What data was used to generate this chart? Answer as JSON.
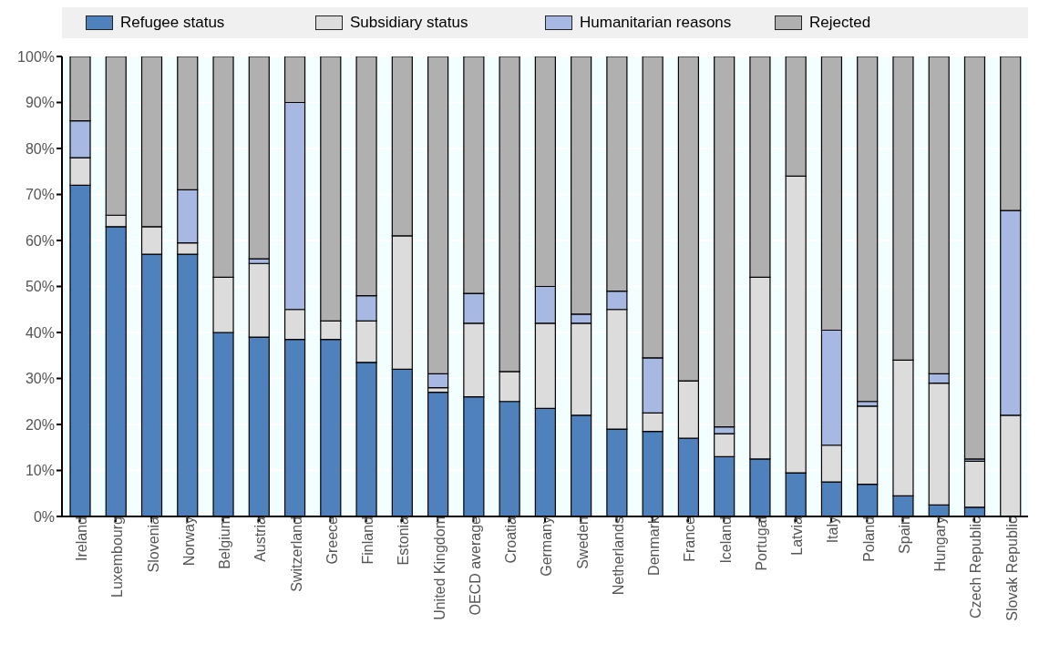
{
  "chart_data": {
    "type": "bar",
    "stacked": true,
    "legend": "top",
    "grid": true,
    "categories": [
      "Ireland",
      "Luxembourg",
      "Slovenia",
      "Norway",
      "Belgium",
      "Austria",
      "Switzerland",
      "Greece",
      "Finland",
      "Estonia",
      "United Kingdom",
      "OECD average",
      "Croatia",
      "Germany",
      "Sweden",
      "Netherlands",
      "Denmark",
      "France",
      "Iceland",
      "Portugal",
      "Latvia",
      "Italy",
      "Poland",
      "Spain",
      "Hungary",
      "Czech Republic",
      "Slovak Republic"
    ],
    "series": [
      {
        "name": "Refugee status",
        "color": "#4f81bd",
        "values": [
          72,
          63,
          57,
          57,
          40,
          39,
          38.5,
          38.5,
          33.5,
          32,
          27,
          26,
          25,
          23.5,
          22,
          19,
          18.5,
          17,
          13,
          12.5,
          9.5,
          7.5,
          7,
          4.5,
          2.5,
          2,
          0
        ]
      },
      {
        "name": "Subsidiary status",
        "color": "#dcdcdc",
        "values": [
          6,
          2.5,
          6,
          2.5,
          12,
          16,
          6.5,
          4,
          9,
          29,
          1,
          16,
          6.5,
          18.5,
          20,
          26,
          4,
          12.5,
          5,
          39.5,
          64.5,
          8,
          17,
          29.5,
          26.5,
          10,
          22
        ]
      },
      {
        "name": "Humanitarian reasons",
        "color": "#a7b8e2",
        "values": [
          8,
          0,
          0,
          11.5,
          0,
          1,
          45,
          0,
          5.5,
          0,
          3,
          6.5,
          0,
          8,
          2,
          4,
          12,
          0,
          1.5,
          0,
          0,
          25,
          1,
          0,
          2,
          0.5,
          44.5
        ]
      },
      {
        "name": "Rejected",
        "color": "#b0b0b0",
        "values": [
          14,
          34.5,
          37,
          29,
          48,
          44,
          10,
          57.5,
          52,
          39,
          69,
          51.5,
          68.5,
          50,
          56,
          51,
          65.5,
          70.5,
          80.5,
          48,
          26,
          59.5,
          75,
          66,
          69,
          87.5,
          33.5
        ]
      }
    ],
    "ylim": [
      0,
      100
    ],
    "yticks": [
      {
        "value": 0,
        "label": "0%"
      },
      {
        "value": 10,
        "label": "10%"
      },
      {
        "value": 20,
        "label": "20%"
      },
      {
        "value": 30,
        "label": "30%"
      },
      {
        "value": 40,
        "label": "40%"
      },
      {
        "value": 50,
        "label": "50%"
      },
      {
        "value": 60,
        "label": "60%"
      },
      {
        "value": 70,
        "label": "70%"
      },
      {
        "value": 80,
        "label": "80%"
      },
      {
        "value": 90,
        "label": "90%"
      },
      {
        "value": 100,
        "label": "100%"
      }
    ]
  }
}
